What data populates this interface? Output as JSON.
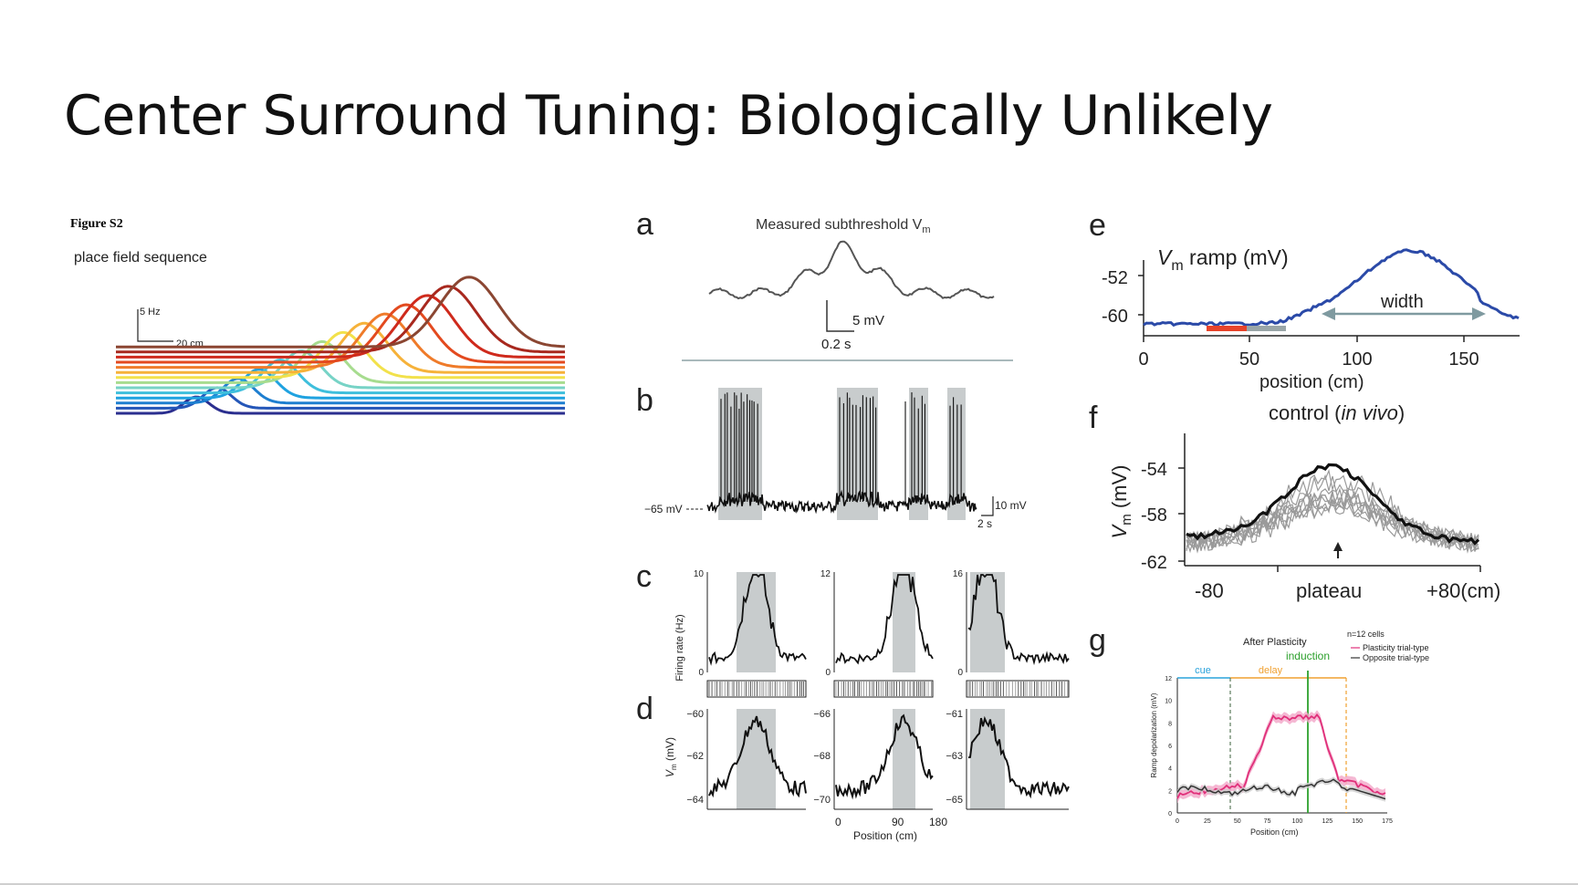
{
  "slide": {
    "title": "Center Surround Tuning: Biologically Unlikely"
  },
  "left_figure": {
    "figure_label": "Figure S2",
    "subtitle": "place field sequence",
    "scale_y": "5 Hz",
    "scale_x": "20 cm",
    "colors": [
      "#2b2f8f",
      "#2456b8",
      "#1e7fd0",
      "#1fa2e0",
      "#3fbfdc",
      "#77d3c6",
      "#a7dc8f",
      "#f2e14b",
      "#f6b23a",
      "#ef7b2a",
      "#e34a1f",
      "#cf2a1c",
      "#a8281e",
      "#8b4632"
    ]
  },
  "panel_a": {
    "letter": "a",
    "title": "Measured subthreshold V",
    "title_sub": "m",
    "scale_v": "5 mV",
    "scale_t": "0.2 s"
  },
  "panel_b": {
    "letter": "b",
    "baseline": "−65 mV",
    "scale_v": "10 mV",
    "scale_t": "2 s"
  },
  "panel_c": {
    "letter": "c",
    "ylabel": "Firing rate (Hz)",
    "ytop": [
      "10",
      "12",
      "16"
    ],
    "ybottom": [
      "0",
      "0",
      "0"
    ]
  },
  "panel_d": {
    "letter": "d",
    "ylabel_main": "V",
    "ylabel_sub": "m",
    "ylabel_unit": " (mV)",
    "yticks": [
      [
        "−60",
        "−62",
        "−64"
      ],
      [
        "−66",
        "−68",
        "−70"
      ],
      [
        "−61",
        "−63",
        "−65"
      ]
    ],
    "xticks": [
      "0",
      "90",
      "180"
    ],
    "xlabel": "Position (cm)"
  },
  "panel_e": {
    "letter": "e",
    "title_main": "V",
    "title_sub": "m",
    "title_rest": " ramp (mV)",
    "yticks": [
      "-52",
      "-60"
    ],
    "xticks": [
      "0",
      "50",
      "100",
      "150"
    ],
    "xlabel": "position (cm)",
    "width_label": "width",
    "line_color": "#2b4aa8"
  },
  "panel_f": {
    "letter": "f",
    "title": "control (",
    "title_italic": "in vivo",
    "title_end": ")",
    "ylabel_main": "V",
    "ylabel_sub": "m",
    "ylabel_unit": " (mV)",
    "yticks": [
      "-54",
      "-58",
      "-62"
    ],
    "xticks": [
      "-80",
      "plateau",
      "+80(cm)"
    ]
  },
  "panel_g": {
    "letter": "g",
    "title": "After Plasticity",
    "legend_n": "n=12 cells",
    "legend_1": "Plasticity trial-type",
    "legend_2": "Opposite trial-type",
    "label_cue": "cue",
    "label_delay": "delay",
    "label_induction": "induction",
    "ylabel": "Ramp depolarization (mV)",
    "xlabel": "Position (cm)",
    "yticks": [
      "0",
      "2",
      "4",
      "6",
      "8",
      "10",
      "12"
    ],
    "xticks": [
      "0",
      "25",
      "50",
      "75",
      "100",
      "125",
      "150",
      "175"
    ],
    "color_pink": "#e0307a",
    "color_cue": "#2aa3dc",
    "color_delay": "#f0a030",
    "color_induction": "#2ca02c"
  }
}
